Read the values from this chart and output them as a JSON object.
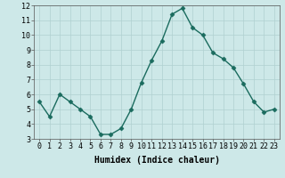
{
  "x": [
    0,
    1,
    2,
    3,
    4,
    5,
    6,
    7,
    8,
    9,
    10,
    11,
    12,
    13,
    14,
    15,
    16,
    17,
    18,
    19,
    20,
    21,
    22,
    23
  ],
  "y": [
    5.5,
    4.5,
    6.0,
    5.5,
    5.0,
    4.5,
    3.3,
    3.3,
    3.7,
    5.0,
    6.8,
    8.3,
    9.6,
    11.4,
    11.8,
    10.5,
    10.0,
    8.8,
    8.4,
    7.8,
    6.7,
    5.5,
    4.8,
    5.0
  ],
  "xlabel": "Humidex (Indice chaleur)",
  "ylim": [
    3,
    12
  ],
  "xlim": [
    -0.5,
    23.5
  ],
  "yticks": [
    3,
    4,
    5,
    6,
    7,
    8,
    9,
    10,
    11,
    12
  ],
  "xticks": [
    0,
    1,
    2,
    3,
    4,
    5,
    6,
    7,
    8,
    9,
    10,
    11,
    12,
    13,
    14,
    15,
    16,
    17,
    18,
    19,
    20,
    21,
    22,
    23
  ],
  "line_color": "#1a6b5e",
  "marker_color": "#1a6b5e",
  "bg_color": "#cde8e8",
  "grid_color": "#b0d0d0",
  "xlabel_fontsize": 7,
  "tick_fontsize": 6,
  "line_width": 1.0,
  "marker_size": 2.5
}
